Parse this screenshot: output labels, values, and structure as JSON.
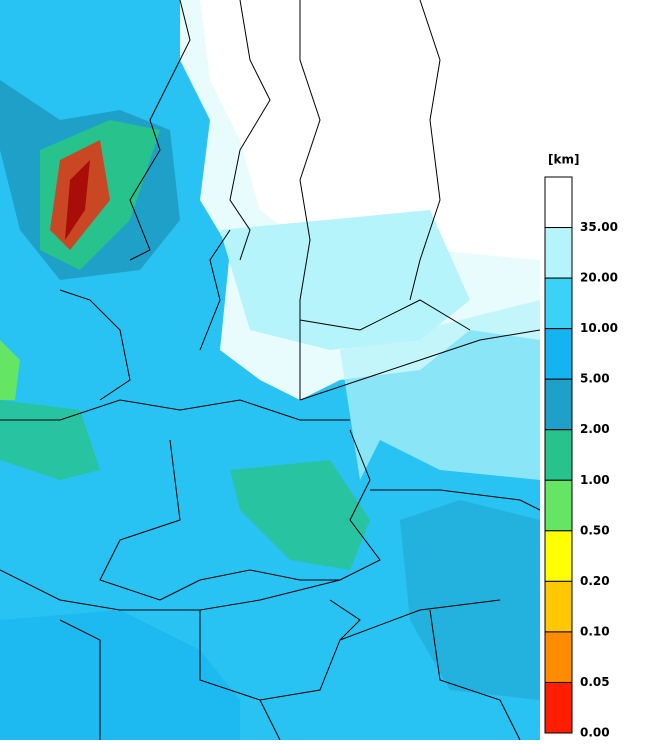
{
  "legend": {
    "unit": "[km]",
    "levels": [
      {
        "label": "35.00",
        "color": "#ffffff"
      },
      {
        "label": "20.00",
        "color": "#b4f4fa"
      },
      {
        "label": "10.00",
        "color": "#3cd2f5"
      },
      {
        "label": "5.00",
        "color": "#14b4f0"
      },
      {
        "label": "2.00",
        "color": "#1ea0c8"
      },
      {
        "label": "1.00",
        "color": "#28c38c"
      },
      {
        "label": "0.50",
        "color": "#64e664"
      },
      {
        "label": "0.20",
        "color": "#ffff00"
      },
      {
        "label": "0.10",
        "color": "#ffc800"
      },
      {
        "label": "0.05",
        "color": "#ff8c00"
      },
      {
        "label": "0.00",
        "color": "#ff1e00"
      }
    ],
    "bottom_color": "#a00000"
  }
}
